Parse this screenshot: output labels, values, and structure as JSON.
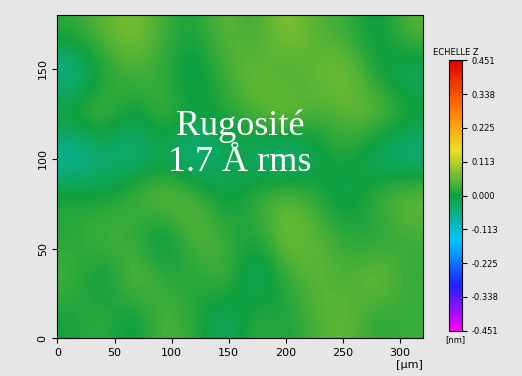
{
  "chart_data": {
    "type": "heatmap",
    "x_label": "[µm]",
    "xlim": [
      0,
      320
    ],
    "xticks": [
      0,
      50,
      100,
      150,
      200,
      250,
      300
    ],
    "ylim": [
      0,
      180
    ],
    "yticks": [
      0,
      50,
      100,
      150
    ],
    "cells": [
      [
        0.02,
        0.05,
        0.08,
        0.03,
        0.0,
        0.06,
        0.02,
        0.09,
        0.04,
        0.03,
        -0.02,
        0.05
      ],
      [
        -0.08,
        0.0,
        0.04,
        0.02,
        -0.03,
        0.03,
        0.07,
        0.02,
        0.06,
        0.08,
        0.0,
        -0.04
      ],
      [
        0.03,
        0.06,
        -0.02,
        0.05,
        0.0,
        0.01,
        0.04,
        0.09,
        0.03,
        0.05,
        0.07,
        0.02
      ],
      [
        -0.1,
        -0.05,
        -0.06,
        -0.03,
        -0.08,
        -0.02,
        -0.04,
        -0.09,
        -0.02,
        0.02,
        -0.05,
        -0.07
      ],
      [
        0.02,
        0.0,
        0.04,
        0.08,
        0.05,
        -0.02,
        0.03,
        0.06,
        0.02,
        -0.03,
        0.04,
        0.07
      ],
      [
        0.01,
        0.05,
        0.02,
        -0.04,
        0.06,
        0.03,
        0.0,
        0.08,
        0.05,
        0.02,
        0.0,
        0.03
      ],
      [
        0.04,
        -0.03,
        0.07,
        0.02,
        0.0,
        0.05,
        -0.05,
        0.02,
        0.06,
        0.03,
        0.08,
        0.02
      ],
      [
        0.0,
        0.03,
        -0.02,
        0.05,
        0.02,
        -0.04,
        0.03,
        0.0,
        0.04,
        0.06,
        0.01,
        0.03
      ]
    ],
    "color_range": [
      -0.451,
      0.451
    ],
    "color_ticks": [
      0.451,
      0.338,
      0.225,
      0.113,
      {
        "value": 0.0,
        "label": "0.000"
      },
      -0.113,
      -0.225,
      -0.338,
      -0.451
    ],
    "colorbar_title": "ECHELLE Z",
    "colorbar_label": "[nm]",
    "annotations": [
      "Rugosité",
      "1.7 Å rms"
    ],
    "grid": false
  }
}
